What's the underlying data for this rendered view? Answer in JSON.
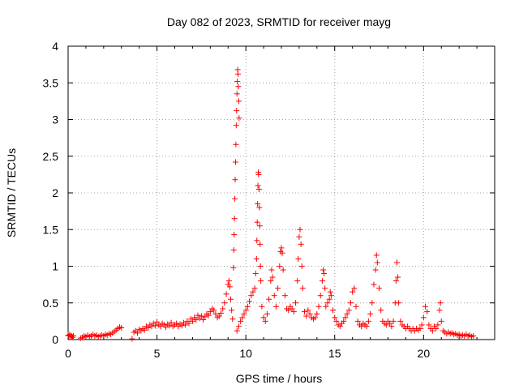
{
  "chart_data": {
    "type": "scatter",
    "title": "Day 082 of 2023, SRMTID for receiver mayg",
    "xlabel": "GPS time / hours",
    "ylabel": "SRMTID / TECUs",
    "xlim": [
      0,
      24
    ],
    "ylim": [
      0,
      4
    ],
    "xticks": [
      0,
      5,
      10,
      15,
      20
    ],
    "yticks": [
      0,
      0.5,
      1,
      1.5,
      2,
      2.5,
      3,
      3.5,
      4
    ],
    "xtick_labels": [
      "0",
      "5",
      "10",
      "15",
      "20"
    ],
    "ytick_labels": [
      "0",
      "0.5",
      "1",
      "1.5",
      "2",
      "2.5",
      "3",
      "3.5",
      "4"
    ],
    "grid": true,
    "marker": "plus",
    "color": "#ff0000",
    "series": [
      {
        "name": "SRMTID",
        "points": [
          [
            0.0,
            0.06
          ],
          [
            0.05,
            0.05
          ],
          [
            0.1,
            0.07
          ],
          [
            0.15,
            0.04
          ],
          [
            0.2,
            0.05
          ],
          [
            0.25,
            0.03
          ],
          [
            0.3,
            0.05
          ],
          [
            0.7,
            0.02
          ],
          [
            0.8,
            0.03
          ],
          [
            0.9,
            0.05
          ],
          [
            1.0,
            0.04
          ],
          [
            1.1,
            0.06
          ],
          [
            1.2,
            0.04
          ],
          [
            1.3,
            0.05
          ],
          [
            1.4,
            0.07
          ],
          [
            1.5,
            0.05
          ],
          [
            1.6,
            0.06
          ],
          [
            1.7,
            0.04
          ],
          [
            1.8,
            0.05
          ],
          [
            1.9,
            0.06
          ],
          [
            2.0,
            0.05
          ],
          [
            2.1,
            0.07
          ],
          [
            2.2,
            0.06
          ],
          [
            2.3,
            0.08
          ],
          [
            2.4,
            0.07
          ],
          [
            2.5,
            0.09
          ],
          [
            2.6,
            0.11
          ],
          [
            2.7,
            0.13
          ],
          [
            2.8,
            0.15
          ],
          [
            2.9,
            0.17
          ],
          [
            3.0,
            0.16
          ],
          [
            3.6,
            0.01
          ],
          [
            3.7,
            0.1
          ],
          [
            3.8,
            0.12
          ],
          [
            3.9,
            0.09
          ],
          [
            4.0,
            0.14
          ],
          [
            4.1,
            0.12
          ],
          [
            4.2,
            0.15
          ],
          [
            4.3,
            0.13
          ],
          [
            4.4,
            0.18
          ],
          [
            4.5,
            0.16
          ],
          [
            4.6,
            0.2
          ],
          [
            4.7,
            0.18
          ],
          [
            4.8,
            0.22
          ],
          [
            4.9,
            0.19
          ],
          [
            5.0,
            0.24
          ],
          [
            5.1,
            0.2
          ],
          [
            5.2,
            0.18
          ],
          [
            5.3,
            0.22
          ],
          [
            5.4,
            0.2
          ],
          [
            5.5,
            0.17
          ],
          [
            5.6,
            0.21
          ],
          [
            5.7,
            0.19
          ],
          [
            5.8,
            0.23
          ],
          [
            5.9,
            0.18
          ],
          [
            6.0,
            0.2
          ],
          [
            6.1,
            0.22
          ],
          [
            6.2,
            0.18
          ],
          [
            6.3,
            0.21
          ],
          [
            6.4,
            0.19
          ],
          [
            6.5,
            0.23
          ],
          [
            6.6,
            0.2
          ],
          [
            6.7,
            0.25
          ],
          [
            6.8,
            0.22
          ],
          [
            6.9,
            0.28
          ],
          [
            7.0,
            0.25
          ],
          [
            7.1,
            0.3
          ],
          [
            7.2,
            0.27
          ],
          [
            7.3,
            0.33
          ],
          [
            7.4,
            0.29
          ],
          [
            7.5,
            0.32
          ],
          [
            7.6,
            0.27
          ],
          [
            7.7,
            0.31
          ],
          [
            7.8,
            0.35
          ],
          [
            7.9,
            0.33
          ],
          [
            8.0,
            0.38
          ],
          [
            8.1,
            0.42
          ],
          [
            8.2,
            0.4
          ],
          [
            8.3,
            0.35
          ],
          [
            8.4,
            0.3
          ],
          [
            8.5,
            0.32
          ],
          [
            8.6,
            0.36
          ],
          [
            8.7,
            0.42
          ],
          [
            8.8,
            0.5
          ],
          [
            8.9,
            0.62
          ],
          [
            9.0,
            0.75
          ],
          [
            9.05,
            0.8
          ],
          [
            9.1,
            0.72
          ],
          [
            9.15,
            0.55
          ],
          [
            9.2,
            0.4
          ],
          [
            9.25,
            0.28
          ],
          [
            9.3,
            0.98
          ],
          [
            9.32,
            1.22
          ],
          [
            9.34,
            1.43
          ],
          [
            9.36,
            1.65
          ],
          [
            9.38,
            1.92
          ],
          [
            9.4,
            2.18
          ],
          [
            9.42,
            2.42
          ],
          [
            9.44,
            2.66
          ],
          [
            9.46,
            2.92
          ],
          [
            9.48,
            3.12
          ],
          [
            9.5,
            3.35
          ],
          [
            9.52,
            3.52
          ],
          [
            9.54,
            3.68
          ],
          [
            9.56,
            3.62
          ],
          [
            9.58,
            3.45
          ],
          [
            9.6,
            3.25
          ],
          [
            9.62,
            3.02
          ],
          [
            9.5,
            0.12
          ],
          [
            9.6,
            0.18
          ],
          [
            9.7,
            0.25
          ],
          [
            9.8,
            0.3
          ],
          [
            9.9,
            0.35
          ],
          [
            10.0,
            0.4
          ],
          [
            10.1,
            0.45
          ],
          [
            10.2,
            0.52
          ],
          [
            10.3,
            0.6
          ],
          [
            10.4,
            0.65
          ],
          [
            10.5,
            0.7
          ],
          [
            10.55,
            0.9
          ],
          [
            10.6,
            1.1
          ],
          [
            10.62,
            1.35
          ],
          [
            10.64,
            1.6
          ],
          [
            10.66,
            1.85
          ],
          [
            10.68,
            2.1
          ],
          [
            10.7,
            2.28
          ],
          [
            10.72,
            2.25
          ],
          [
            10.74,
            2.05
          ],
          [
            10.76,
            1.8
          ],
          [
            10.78,
            1.55
          ],
          [
            10.8,
            1.3
          ],
          [
            10.82,
            1.0
          ],
          [
            10.84,
            0.8
          ],
          [
            10.9,
            0.45
          ],
          [
            11.0,
            0.3
          ],
          [
            11.1,
            0.25
          ],
          [
            11.2,
            0.35
          ],
          [
            11.3,
            0.55
          ],
          [
            11.4,
            0.8
          ],
          [
            11.45,
            0.95
          ],
          [
            11.5,
            0.85
          ],
          [
            11.6,
            0.6
          ],
          [
            11.7,
            0.45
          ],
          [
            11.8,
            0.7
          ],
          [
            11.9,
            1.0
          ],
          [
            11.95,
            1.2
          ],
          [
            12.0,
            1.25
          ],
          [
            12.05,
            1.18
          ],
          [
            12.1,
            0.95
          ],
          [
            12.2,
            0.6
          ],
          [
            12.3,
            0.42
          ],
          [
            12.4,
            0.4
          ],
          [
            12.5,
            0.45
          ],
          [
            12.6,
            0.42
          ],
          [
            12.7,
            0.38
          ],
          [
            12.8,
            0.5
          ],
          [
            12.9,
            0.8
          ],
          [
            12.95,
            1.1
          ],
          [
            13.0,
            1.4
          ],
          [
            13.05,
            1.5
          ],
          [
            13.1,
            1.3
          ],
          [
            13.15,
            1.0
          ],
          [
            13.2,
            0.7
          ],
          [
            13.3,
            0.38
          ],
          [
            13.4,
            0.32
          ],
          [
            13.5,
            0.4
          ],
          [
            13.6,
            0.35
          ],
          [
            13.7,
            0.3
          ],
          [
            13.8,
            0.28
          ],
          [
            13.9,
            0.3
          ],
          [
            14.0,
            0.35
          ],
          [
            14.1,
            0.45
          ],
          [
            14.2,
            0.6
          ],
          [
            14.3,
            0.8
          ],
          [
            14.35,
            0.95
          ],
          [
            14.4,
            0.9
          ],
          [
            14.45,
            0.7
          ],
          [
            14.5,
            0.45
          ],
          [
            14.6,
            0.5
          ],
          [
            14.7,
            0.55
          ],
          [
            14.75,
            0.65
          ],
          [
            14.8,
            0.6
          ],
          [
            14.9,
            0.4
          ],
          [
            15.0,
            0.3
          ],
          [
            15.1,
            0.25
          ],
          [
            15.2,
            0.2
          ],
          [
            15.3,
            0.18
          ],
          [
            15.4,
            0.22
          ],
          [
            15.5,
            0.25
          ],
          [
            15.6,
            0.3
          ],
          [
            15.7,
            0.35
          ],
          [
            15.8,
            0.4
          ],
          [
            15.9,
            0.5
          ],
          [
            16.0,
            0.65
          ],
          [
            16.1,
            0.7
          ],
          [
            16.2,
            0.45
          ],
          [
            16.3,
            0.25
          ],
          [
            16.4,
            0.2
          ],
          [
            16.5,
            0.18
          ],
          [
            16.6,
            0.22
          ],
          [
            16.7,
            0.2
          ],
          [
            16.8,
            0.18
          ],
          [
            16.9,
            0.25
          ],
          [
            17.0,
            0.35
          ],
          [
            17.1,
            0.5
          ],
          [
            17.2,
            0.75
          ],
          [
            17.3,
            0.95
          ],
          [
            17.35,
            1.15
          ],
          [
            17.4,
            1.05
          ],
          [
            17.5,
            0.7
          ],
          [
            17.6,
            0.4
          ],
          [
            17.7,
            0.25
          ],
          [
            17.8,
            0.22
          ],
          [
            17.9,
            0.2
          ],
          [
            18.0,
            0.25
          ],
          [
            18.1,
            0.22
          ],
          [
            18.2,
            0.18
          ],
          [
            18.3,
            0.25
          ],
          [
            18.4,
            0.5
          ],
          [
            18.45,
            0.8
          ],
          [
            18.5,
            1.05
          ],
          [
            18.55,
            0.85
          ],
          [
            18.6,
            0.5
          ],
          [
            18.7,
            0.25
          ],
          [
            18.8,
            0.2
          ],
          [
            18.9,
            0.18
          ],
          [
            19.0,
            0.15
          ],
          [
            19.1,
            0.18
          ],
          [
            19.2,
            0.15
          ],
          [
            19.3,
            0.12
          ],
          [
            19.4,
            0.15
          ],
          [
            19.5,
            0.12
          ],
          [
            19.6,
            0.15
          ],
          [
            19.7,
            0.13
          ],
          [
            19.8,
            0.15
          ],
          [
            19.9,
            0.2
          ],
          [
            20.0,
            0.3
          ],
          [
            20.1,
            0.45
          ],
          [
            20.2,
            0.38
          ],
          [
            20.3,
            0.2
          ],
          [
            20.4,
            0.15
          ],
          [
            20.5,
            0.12
          ],
          [
            20.6,
            0.18
          ],
          [
            20.7,
            0.15
          ],
          [
            20.8,
            0.2
          ],
          [
            20.9,
            0.4
          ],
          [
            20.95,
            0.5
          ],
          [
            21.0,
            0.25
          ],
          [
            21.1,
            0.12
          ],
          [
            21.2,
            0.1
          ],
          [
            21.3,
            0.08
          ],
          [
            21.4,
            0.1
          ],
          [
            21.5,
            0.08
          ],
          [
            21.6,
            0.09
          ],
          [
            21.7,
            0.07
          ],
          [
            21.8,
            0.08
          ],
          [
            21.9,
            0.06
          ],
          [
            22.0,
            0.07
          ],
          [
            22.1,
            0.05
          ],
          [
            22.2,
            0.06
          ],
          [
            22.3,
            0.05
          ],
          [
            22.4,
            0.07
          ],
          [
            22.5,
            0.05
          ],
          [
            22.6,
            0.06
          ],
          [
            22.7,
            0.04
          ],
          [
            22.8,
            0.05
          ]
        ]
      }
    ]
  }
}
